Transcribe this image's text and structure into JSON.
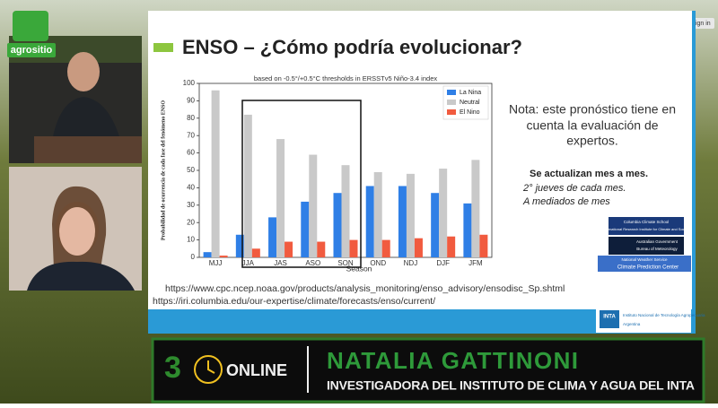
{
  "brand": "agrositio",
  "top_button": "Sign in",
  "slide": {
    "title": "ENSO – ¿Cómo podría evolucionar?",
    "note_lines": [
      "Nota: este pronóstico tiene en",
      "cuenta la evaluación de",
      "expertos."
    ],
    "update": "Se actualizan mes a mes.",
    "update_details": [
      "2° jueves de cada mes.",
      "A mediados de mes"
    ],
    "links": [
      "https://www.cpc.ncep.noaa.gov/products/analysis_monitoring/enso_advisory/ensodisc_Sp.shtml",
      "https://iri.columbia.edu/our-expertise/climate/forecasts/enso/current/"
    ],
    "logos": [
      "Columbia Climate School",
      "International Research Institute for Climate and Society",
      "Australian Government",
      "Bureau of Meteorology",
      "National Weather Service",
      "Climate Prediction Center",
      "INTA",
      "Instituto Nacional de Tecnología Agropecuaria",
      "Argentina"
    ]
  },
  "chart_data": {
    "type": "bar",
    "subtitle": "based on -0.5°/+0.5°C thresholds in ERSSTv5 Niño-3.4 index",
    "xlabel": "Season",
    "ylabel": "Probabilidad de ocurrencia de cada fase del fenómeno ENSO",
    "categories": [
      "MJJ",
      "JJA",
      "JAS",
      "ASO",
      "SON",
      "OND",
      "NDJ",
      "DJF",
      "JFM"
    ],
    "series": [
      {
        "name": "La Nina",
        "color": "#2f7fe6",
        "values": [
          3,
          13,
          23,
          32,
          37,
          41,
          41,
          37,
          31
        ]
      },
      {
        "name": "Neutral",
        "color": "#c9c9c9",
        "values": [
          96,
          82,
          68,
          59,
          53,
          49,
          48,
          51,
          56
        ]
      },
      {
        "name": "El Nino",
        "color": "#f15b3f",
        "values": [
          1,
          5,
          9,
          9,
          10,
          10,
          11,
          12,
          13
        ]
      }
    ],
    "ylim": [
      0,
      100
    ],
    "yticks": [
      0,
      10,
      20,
      30,
      40,
      50,
      60,
      70,
      80,
      90,
      100
    ],
    "legend": "upper right",
    "grid": false
  },
  "banner": {
    "number": "3",
    "label": "ONLINE",
    "name": "NATALIA GATTINONI",
    "role": "INVESTIGADORA DEL INSTITUTO DE CLIMA Y AGUA DEL INTA"
  }
}
